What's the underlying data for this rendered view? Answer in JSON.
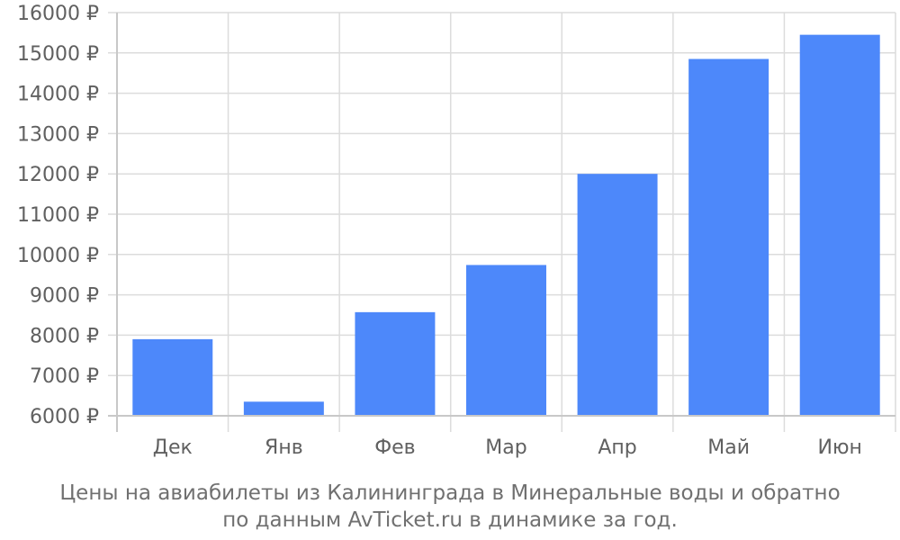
{
  "chart_data": {
    "type": "bar",
    "categories": [
      "Дек",
      "Янв",
      "Фев",
      "Мар",
      "Апр",
      "Май",
      "Июн"
    ],
    "series": [
      {
        "values": [
          7900,
          6350,
          8570,
          9740,
          12000,
          14850,
          15450
        ],
        "color": "#4d88fa"
      }
    ],
    "ylim": [
      6000,
      16000
    ],
    "yticks": [
      6000,
      7000,
      8000,
      9000,
      10000,
      11000,
      12000,
      13000,
      14000,
      15000,
      16000
    ],
    "ytick_suffix": " ₽",
    "grid": true,
    "caption_lines": [
      "Цены на авиабилеты из Калининграда в Минеральные воды и обратно",
      "по данным AvTicket.ru в динамике за год."
    ]
  }
}
